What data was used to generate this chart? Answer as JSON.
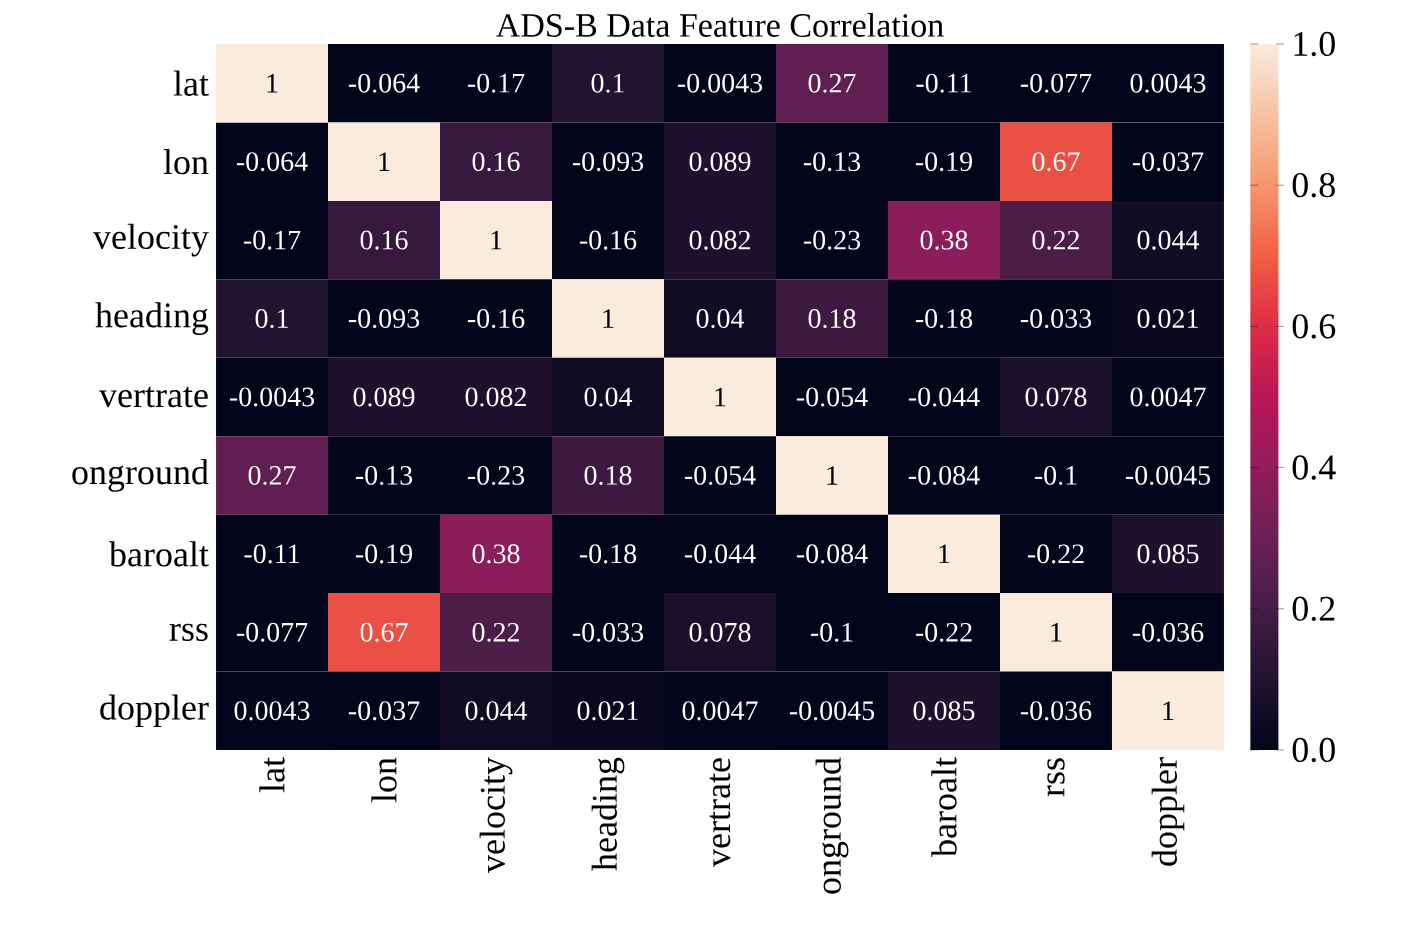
{
  "chart_data": {
    "type": "heatmap",
    "title": "ADS-B Data Feature Correlation",
    "categories": [
      "lat",
      "lon",
      "velocity",
      "heading",
      "vertrate",
      "onground",
      "baroalt",
      "rss",
      "doppler"
    ],
    "y_categories": [
      "lat",
      "lon",
      "velocity",
      "heading",
      "vertrate",
      "onground",
      "baroalt",
      "rss",
      "doppler"
    ],
    "cells": [
      [
        1,
        -0.064,
        -0.17,
        0.1,
        -0.0043,
        0.27,
        -0.11,
        -0.077,
        0.0043
      ],
      [
        -0.064,
        1,
        0.16,
        -0.093,
        0.089,
        -0.13,
        -0.19,
        0.67,
        -0.037
      ],
      [
        -0.17,
        0.16,
        1,
        -0.16,
        0.082,
        -0.23,
        0.38,
        0.22,
        0.044
      ],
      [
        0.1,
        -0.093,
        -0.16,
        1,
        0.04,
        0.18,
        -0.18,
        -0.033,
        0.021
      ],
      [
        -0.0043,
        0.089,
        0.082,
        0.04,
        1,
        -0.054,
        -0.044,
        0.078,
        0.0047
      ],
      [
        0.27,
        -0.13,
        -0.23,
        0.18,
        -0.054,
        1,
        -0.084,
        -0.1,
        -0.0045
      ],
      [
        -0.11,
        -0.19,
        0.38,
        -0.18,
        -0.044,
        -0.084,
        1,
        -0.22,
        0.085
      ],
      [
        -0.077,
        0.67,
        0.22,
        -0.033,
        0.078,
        -0.1,
        -0.22,
        1,
        -0.036
      ],
      [
        0.0043,
        -0.037,
        0.044,
        0.021,
        0.0047,
        -0.0045,
        0.085,
        -0.036,
        1
      ]
    ],
    "clim": [
      0,
      1
    ],
    "cticks": [
      {
        "value": 0,
        "label": "0.0"
      },
      0.2,
      0.4,
      0.6,
      0.8,
      {
        "value": 1,
        "label": "1.0"
      }
    ],
    "data_labels": true
  }
}
